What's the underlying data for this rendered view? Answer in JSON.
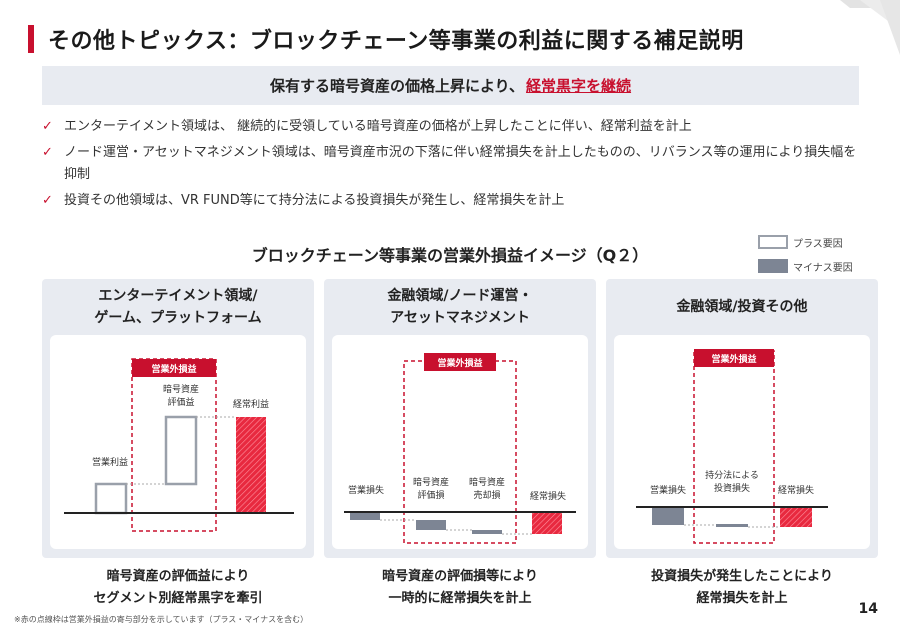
{
  "title": "その他トピックス：ブロックチェーン等事業の利益に関する補足説明",
  "banner": {
    "prefix": "保有する暗号資産の価格上昇により、",
    "highlight": "経常黒字を継続"
  },
  "bullets": [
    "エンターテイメント領域は、 継続的に受領している暗号資産の価格が上昇したことに伴い、経常利益を計上",
    "ノード運営・アセットマネジメント領域は、暗号資産市況の下落に伴い経常損失を計上したものの、リバランス等の運用により損失幅を抑制",
    "投資その他領域は、VR FUND等にて持分法による投資損失が発生し、経常損失を計上"
  ],
  "subtitle": "ブロックチェーン等事業の営業外損益イメージ（Q２）",
  "legend": {
    "plus": "プラス要因",
    "minus": "マイナス要因"
  },
  "tag_label": "営業外損益",
  "colors": {
    "accent": "#c8102e",
    "plus_border": "#9aa0aa",
    "minus_fill": "#7d8594",
    "panel_bg": "#e8ebf1"
  },
  "panels": [
    {
      "heading_line1": "エンターテイメント領域/",
      "heading_line2": "ゲーム、プラットフォーム",
      "bars": [
        {
          "label": "営業利益",
          "kind": "plus"
        },
        {
          "label_line1": "暗号資産",
          "label_line2": "評価益",
          "kind": "plus"
        },
        {
          "label": "経常利益",
          "kind": "result"
        }
      ],
      "caption_line1": "暗号資産の評価益により",
      "caption_line2": "セグメント別経常黒字を牽引"
    },
    {
      "heading_line1": "金融領域/ノード運営・",
      "heading_line2": "アセットマネジメント",
      "bars": [
        {
          "label": "営業損失",
          "kind": "minus"
        },
        {
          "label_line1": "暗号資産",
          "label_line2": "評価損",
          "kind": "minus"
        },
        {
          "label_line1": "暗号資産",
          "label_line2": "売却損",
          "kind": "minus"
        },
        {
          "label": "経常損失",
          "kind": "result"
        }
      ],
      "caption_line1": "暗号資産の評価損等により",
      "caption_line2": "一時的に経常損失を計上"
    },
    {
      "heading_line1": "金融領域/投資その他",
      "heading_line2": "",
      "bars": [
        {
          "label": "営業損失",
          "kind": "minus"
        },
        {
          "label_line1": "持分法による",
          "label_line2": "投資損失",
          "kind": "minus"
        },
        {
          "label": "経常損失",
          "kind": "result"
        }
      ],
      "caption_line1": "投資損失が発生したことにより",
      "caption_line2": "経常損失を計上"
    }
  ],
  "footnote": "※赤の点線枠は営業外損益の寄与部分を示しています（プラス・マイナスを含む）",
  "page_number": "14"
}
